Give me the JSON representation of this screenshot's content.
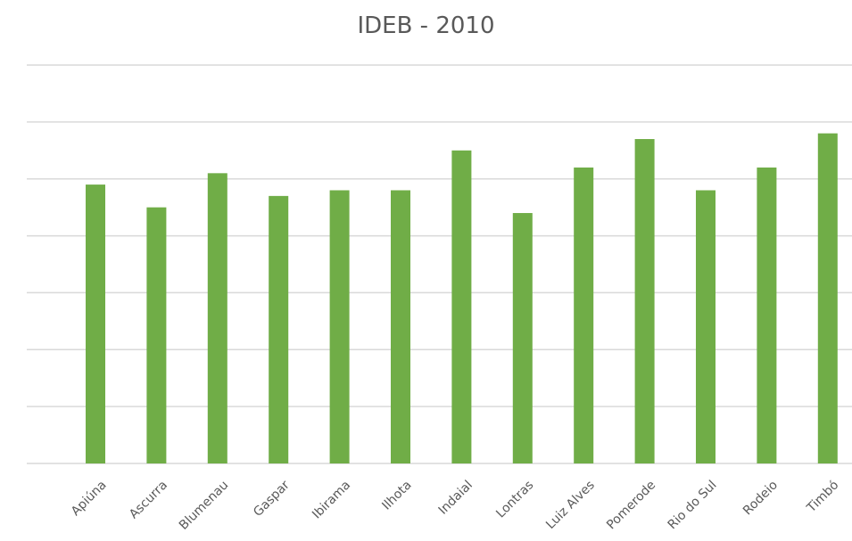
{
  "chart_data": {
    "type": "bar",
    "title": "IDEB - 2010",
    "categories": [
      "Apiúna",
      "Ascurra",
      "Blumenau",
      "Gaspar",
      "Ibirama",
      "Ilhota",
      "Indaial",
      "Lontras",
      "Luiz Alves",
      "Pomerode",
      "Rio do Sul",
      "Rodeio",
      "Timbó"
    ],
    "values": [
      4.9,
      4.5,
      5.1,
      4.7,
      4.8,
      4.8,
      5.5,
      4.4,
      5.2,
      5.7,
      4.8,
      5.2,
      5.8
    ],
    "ylim": [
      0,
      7
    ],
    "ytick_step": 1,
    "grid": true,
    "bar_color": "#70ad47",
    "grid_color": "#d9d9d9",
    "text_color": "#595959"
  }
}
